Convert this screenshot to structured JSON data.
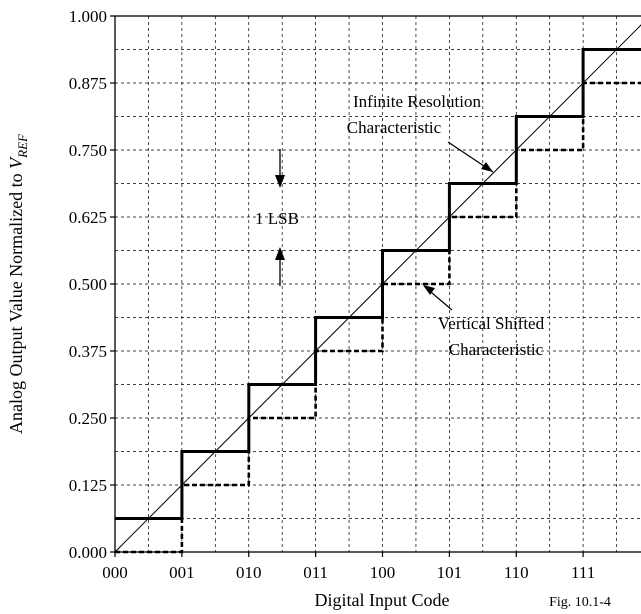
{
  "chart_data": {
    "type": "line",
    "xlabel": "Digital Input Code",
    "ylabel_main": "Analog Output Value Normalized to ",
    "ylabel_var": "V",
    "ylabel_sub": "REF",
    "x_tick_labels": [
      "000",
      "001",
      "010",
      "011",
      "100",
      "101",
      "110",
      "111"
    ],
    "y_tick_labels": [
      "0.000",
      "0.125",
      "0.250",
      "0.375",
      "0.500",
      "0.625",
      "0.750",
      "0.875",
      "1.000"
    ],
    "ylim": [
      0,
      1
    ],
    "xlim": [
      0,
      8
    ],
    "grid": true,
    "series": [
      {
        "style": "solid-thick",
        "x": [
          0,
          1,
          1,
          2,
          2,
          3,
          3,
          4,
          4,
          5,
          5,
          6,
          6,
          7,
          7,
          8
        ],
        "y": [
          0.0625,
          0.0625,
          0.1875,
          0.1875,
          0.3125,
          0.3125,
          0.4375,
          0.4375,
          0.5625,
          0.5625,
          0.6875,
          0.6875,
          0.8125,
          0.8125,
          0.9375,
          0.9375
        ]
      },
      {
        "style": "dashed-thick",
        "x": [
          0,
          1,
          1,
          2,
          2,
          3,
          3,
          4,
          4,
          5,
          5,
          6,
          6,
          7,
          7,
          8
        ],
        "y": [
          0,
          0,
          0.125,
          0.125,
          0.25,
          0.25,
          0.375,
          0.375,
          0.5,
          0.5,
          0.625,
          0.625,
          0.75,
          0.75,
          0.875,
          0.875
        ]
      },
      {
        "style": "thin-diagonal",
        "x": [
          0,
          8
        ],
        "y": [
          0,
          1
        ]
      }
    ],
    "annotations": {
      "infinite_line1": "Infinite Resolution",
      "infinite_line2": "Characteristic",
      "lsb": "1 LSB",
      "shifted_line1": "Vertical Shifted",
      "shifted_line2": "Characteristic",
      "fig": "Fig. 10.1-4"
    }
  }
}
